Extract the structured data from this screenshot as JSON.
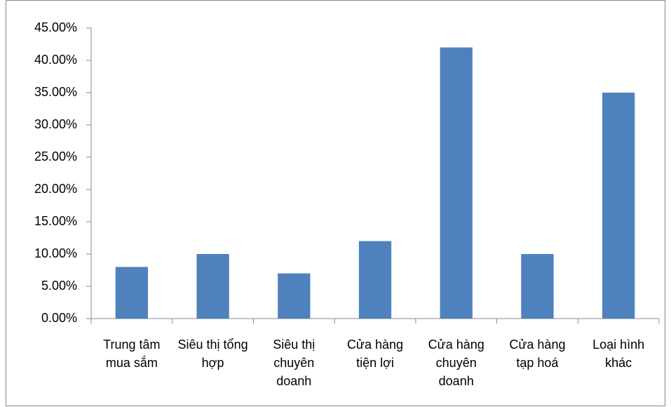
{
  "chart_data": {
    "type": "bar",
    "categories": [
      "Trung tâm mua sắm",
      "Siêu thị tổng hợp",
      "Siêu thị chuyên doanh",
      "Cửa hàng tiện lợi",
      "Cửa hàng chuyên doanh",
      "Cửa hàng tạp hoá",
      "Loại hình khác"
    ],
    "values": [
      8,
      10,
      7,
      12,
      42,
      10,
      35
    ],
    "color": "#4f81bd",
    "ylim": [
      0,
      45
    ],
    "yticks": [
      {
        "value": 0,
        "label": "0.00%"
      },
      {
        "value": 5,
        "label": "5.00%"
      },
      {
        "value": 10,
        "label": "10.00%"
      },
      {
        "value": 15,
        "label": "15.00%"
      },
      {
        "value": 20,
        "label": "20.00%"
      },
      {
        "value": 25,
        "label": "25.00%"
      },
      {
        "value": 30,
        "label": "30.00%"
      },
      {
        "value": 35,
        "label": "35.00%"
      },
      {
        "value": 40,
        "label": "40.00%"
      },
      {
        "value": 45,
        "label": "45.00%"
      }
    ],
    "grid": false
  }
}
